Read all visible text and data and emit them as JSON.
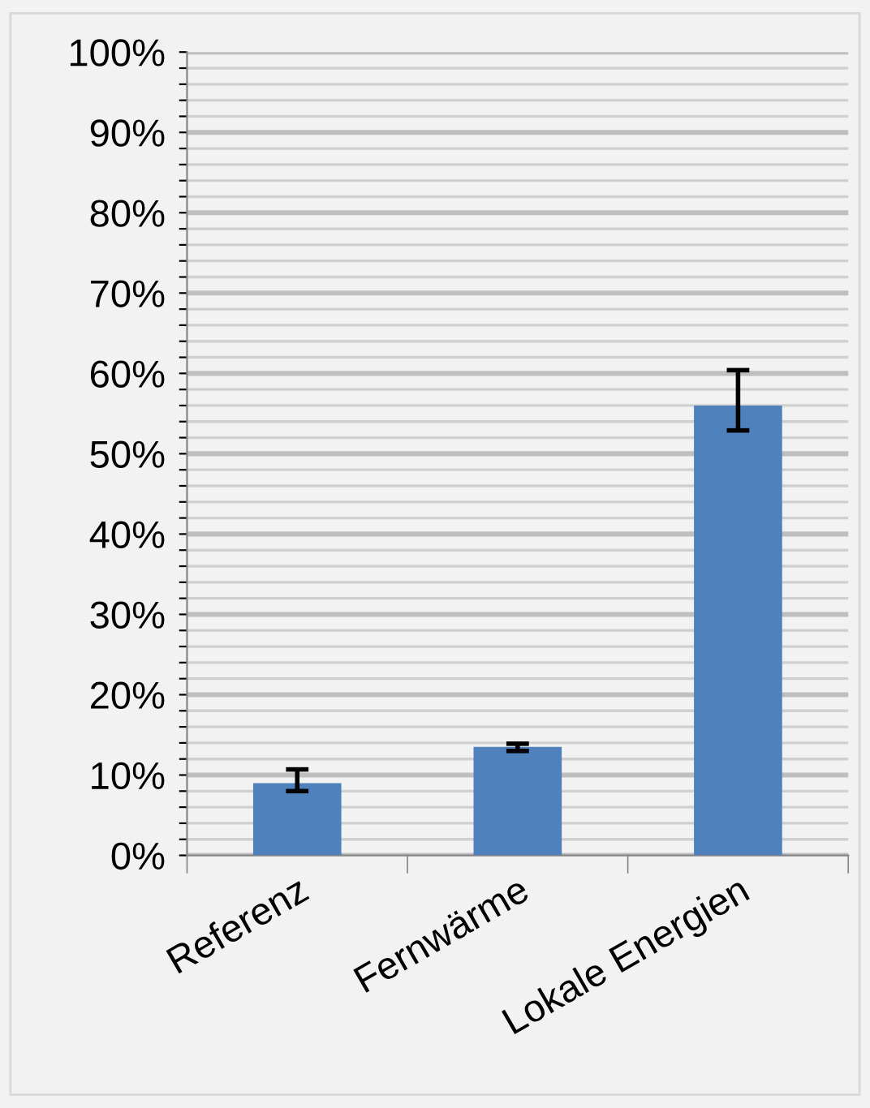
{
  "chart_data": {
    "type": "bar",
    "categories": [
      "Referenz",
      "Fernwärme",
      "Lokale Energien"
    ],
    "values": [
      9.0,
      13.5,
      56.0
    ],
    "errors": [
      [
        8.0,
        10.7
      ],
      [
        13.0,
        13.9
      ],
      [
        52.9,
        60.4
      ]
    ],
    "color": "#4f81bd",
    "ylim": [
      0,
      100
    ],
    "yticks": [
      {
        "value": 0,
        "label": "0%"
      },
      {
        "value": 2,
        "label": null
      },
      {
        "value": 4,
        "label": null
      },
      {
        "value": 6,
        "label": null
      },
      {
        "value": 8,
        "label": null
      },
      {
        "value": 10,
        "label": "10%"
      },
      {
        "value": 12,
        "label": null
      },
      {
        "value": 14,
        "label": null
      },
      {
        "value": 16,
        "label": null
      },
      {
        "value": 18,
        "label": null
      },
      {
        "value": 20,
        "label": "20%"
      },
      {
        "value": 22,
        "label": null
      },
      {
        "value": 24,
        "label": null
      },
      {
        "value": 26,
        "label": null
      },
      {
        "value": 28,
        "label": null
      },
      {
        "value": 30,
        "label": "30%"
      },
      {
        "value": 32,
        "label": null
      },
      {
        "value": 34,
        "label": null
      },
      {
        "value": 36,
        "label": null
      },
      {
        "value": 38,
        "label": null
      },
      {
        "value": 40,
        "label": "40%"
      },
      {
        "value": 42,
        "label": null
      },
      {
        "value": 44,
        "label": null
      },
      {
        "value": 46,
        "label": null
      },
      {
        "value": 48,
        "label": null
      },
      {
        "value": 50,
        "label": "50%"
      },
      {
        "value": 52,
        "label": null
      },
      {
        "value": 54,
        "label": null
      },
      {
        "value": 56,
        "label": null
      },
      {
        "value": 58,
        "label": null
      },
      {
        "value": 60,
        "label": "60%"
      },
      {
        "value": 62,
        "label": null
      },
      {
        "value": 64,
        "label": null
      },
      {
        "value": 66,
        "label": null
      },
      {
        "value": 68,
        "label": null
      },
      {
        "value": 70,
        "label": "70%"
      },
      {
        "value": 72,
        "label": null
      },
      {
        "value": 74,
        "label": null
      },
      {
        "value": 76,
        "label": null
      },
      {
        "value": 78,
        "label": null
      },
      {
        "value": 80,
        "label": "80%"
      },
      {
        "value": 82,
        "label": null
      },
      {
        "value": 84,
        "label": null
      },
      {
        "value": 86,
        "label": null
      },
      {
        "value": 88,
        "label": null
      },
      {
        "value": 90,
        "label": "90%"
      },
      {
        "value": 92,
        "label": null
      },
      {
        "value": 94,
        "label": null
      },
      {
        "value": 96,
        "label": null
      },
      {
        "value": 98,
        "label": null
      },
      {
        "value": 100,
        "label": "100%"
      }
    ],
    "grid": "y"
  }
}
